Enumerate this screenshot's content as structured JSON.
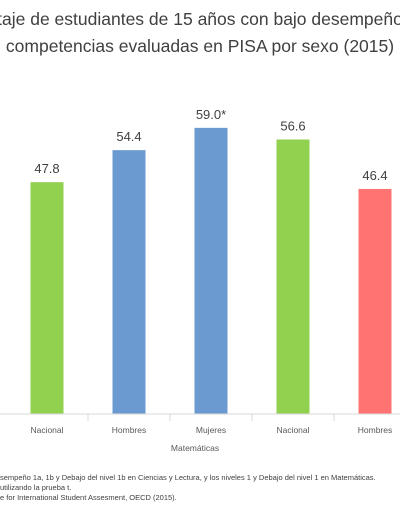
{
  "chart_data": {
    "type": "bar",
    "title_lines": [
      "taje de estudiantes de 15 años con bajo desempeño",
      "competencias evaluadas en PISA por sexo (2015)"
    ],
    "categories": [
      "Nacional",
      "Hombres",
      "Mujeres",
      "Nacional",
      "Hombres"
    ],
    "values": [
      47.8,
      54.4,
      59.0,
      56.6,
      46.4
    ],
    "value_labels": [
      "47.8",
      "54.4",
      "59.0*",
      "56.6",
      "46.4"
    ],
    "bar_colors": [
      "#92d050",
      "#6a9acf",
      "#6a9acf",
      "#92d050",
      "#ff7373"
    ],
    "group_label": "Matemáticas",
    "ylim": [
      0,
      70
    ],
    "grid": false,
    "footnotes": [
      "sempeño 1a, 1b y Debajo del nivel 1b en Ciencias y Lectura, y los niveles 1 y Debajo del nivel 1 en Matemáticas.",
      "utilizando la prueba t.",
      "e for International Student Assesment, OECD (2015)."
    ]
  }
}
